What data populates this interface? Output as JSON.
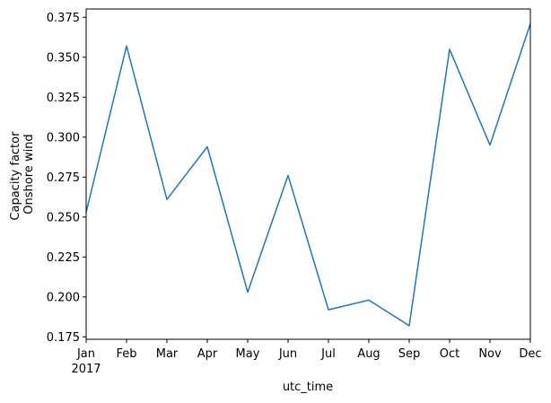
{
  "chart_data": {
    "type": "line",
    "title": "",
    "xlabel": "utc_time",
    "ylabel": [
      "Capacity factor",
      "Onshore wind"
    ],
    "x": [
      "Jan",
      "Feb",
      "Mar",
      "Apr",
      "May",
      "Jun",
      "Jul",
      "Aug",
      "Sep",
      "Oct",
      "Nov",
      "Dec"
    ],
    "x_year_label": "2017",
    "series": [
      {
        "color": "#1f77b4",
        "values": [
          0.253,
          0.357,
          0.261,
          0.294,
          0.203,
          0.276,
          0.192,
          0.198,
          0.182,
          0.355,
          0.295,
          0.371
        ]
      }
    ],
    "ylim": [
      0.1735,
      0.3802
    ],
    "yticks": [
      0.175,
      0.2,
      0.225,
      0.25,
      0.275,
      0.3,
      0.325,
      0.35,
      0.375
    ],
    "ytick_labels": [
      "0.175",
      "0.200",
      "0.225",
      "0.250",
      "0.275",
      "0.300",
      "0.325",
      "0.350",
      "0.375"
    ],
    "grid": false,
    "legend": "none"
  }
}
